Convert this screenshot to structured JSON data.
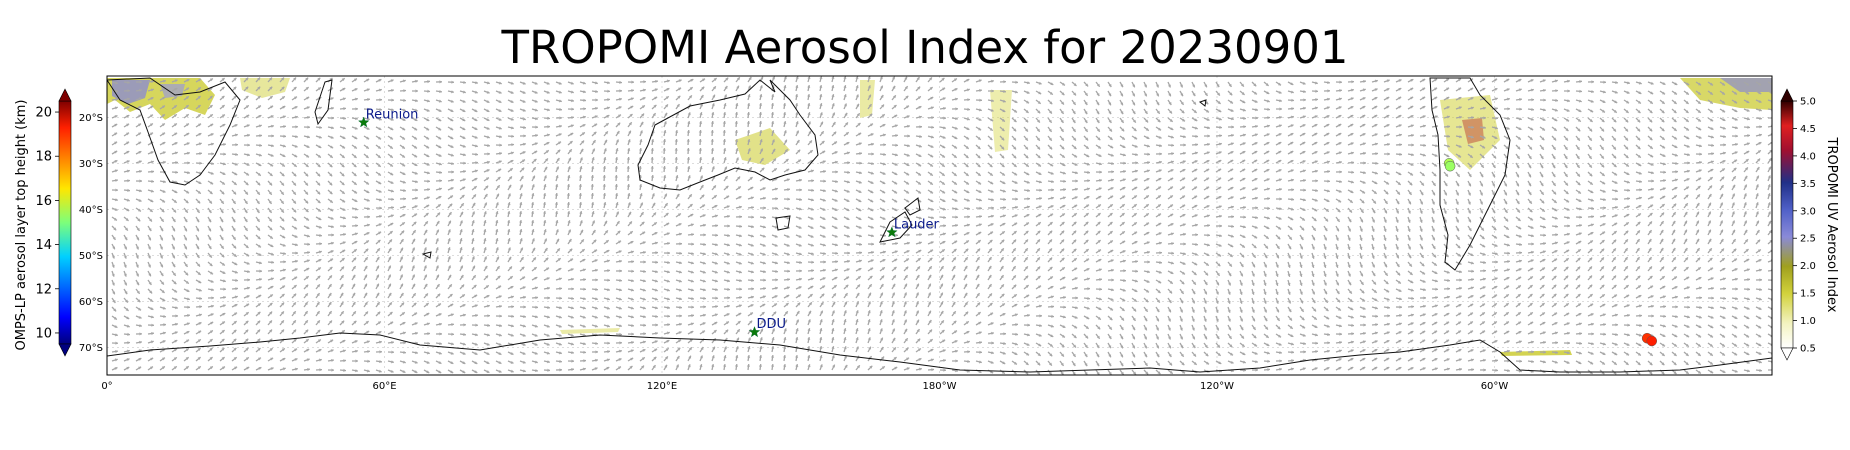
{
  "title": "TROPOMI Aerosol Index for 20230901",
  "map": {
    "lon_range": [
      0,
      360
    ],
    "lat_range": [
      -76,
      -11
    ],
    "lon_ticks": [
      {
        "lon": 0,
        "label": "0°"
      },
      {
        "lon": 60,
        "label": "60°E"
      },
      {
        "lon": 120,
        "label": "120°E"
      },
      {
        "lon": 180,
        "label": "180°W"
      },
      {
        "lon": 240,
        "label": "120°W"
      },
      {
        "lon": 300,
        "label": "60°W"
      }
    ],
    "lat_ticks": [
      {
        "lat": -20,
        "label": "20°S"
      },
      {
        "lat": -30,
        "label": "30°S"
      },
      {
        "lat": -40,
        "label": "40°S"
      },
      {
        "lat": -50,
        "label": "50°S"
      },
      {
        "lat": -60,
        "label": "60°S"
      },
      {
        "lat": -70,
        "label": "70°S"
      }
    ],
    "stations": [
      {
        "name": "Reunion",
        "lon": 55.5,
        "lat": -21.1
      },
      {
        "name": "Lauder",
        "lon": 169.7,
        "lat": -45.0
      },
      {
        "name": "DDU",
        "lon": 140.0,
        "lat": -66.7
      }
    ],
    "omps_points": [
      {
        "lon": 290.2,
        "lat": -30.0,
        "height_km": 15.5
      },
      {
        "lon": 290.4,
        "lat": -30.6,
        "height_km": 15.3
      },
      {
        "lon": 333.0,
        "lat": -68.0,
        "height_km": 18.6
      },
      {
        "lon": 334.0,
        "lat": -68.6,
        "height_km": 18.8
      }
    ]
  },
  "left_colorbar": {
    "label": "OMPS-LP aerosol layer top height (km)",
    "ticks": [
      "10",
      "12",
      "14",
      "16",
      "18",
      "20"
    ],
    "range": [
      9.5,
      20.5
    ]
  },
  "right_colorbar": {
    "label": "TROPOMI UV Aerosol Index",
    "ticks": [
      "0.5",
      "1.0",
      "1.5",
      "2.0",
      "2.5",
      "3.0",
      "3.5",
      "4.0",
      "4.5",
      "5.0"
    ],
    "range": [
      0.5,
      5.0
    ]
  }
}
